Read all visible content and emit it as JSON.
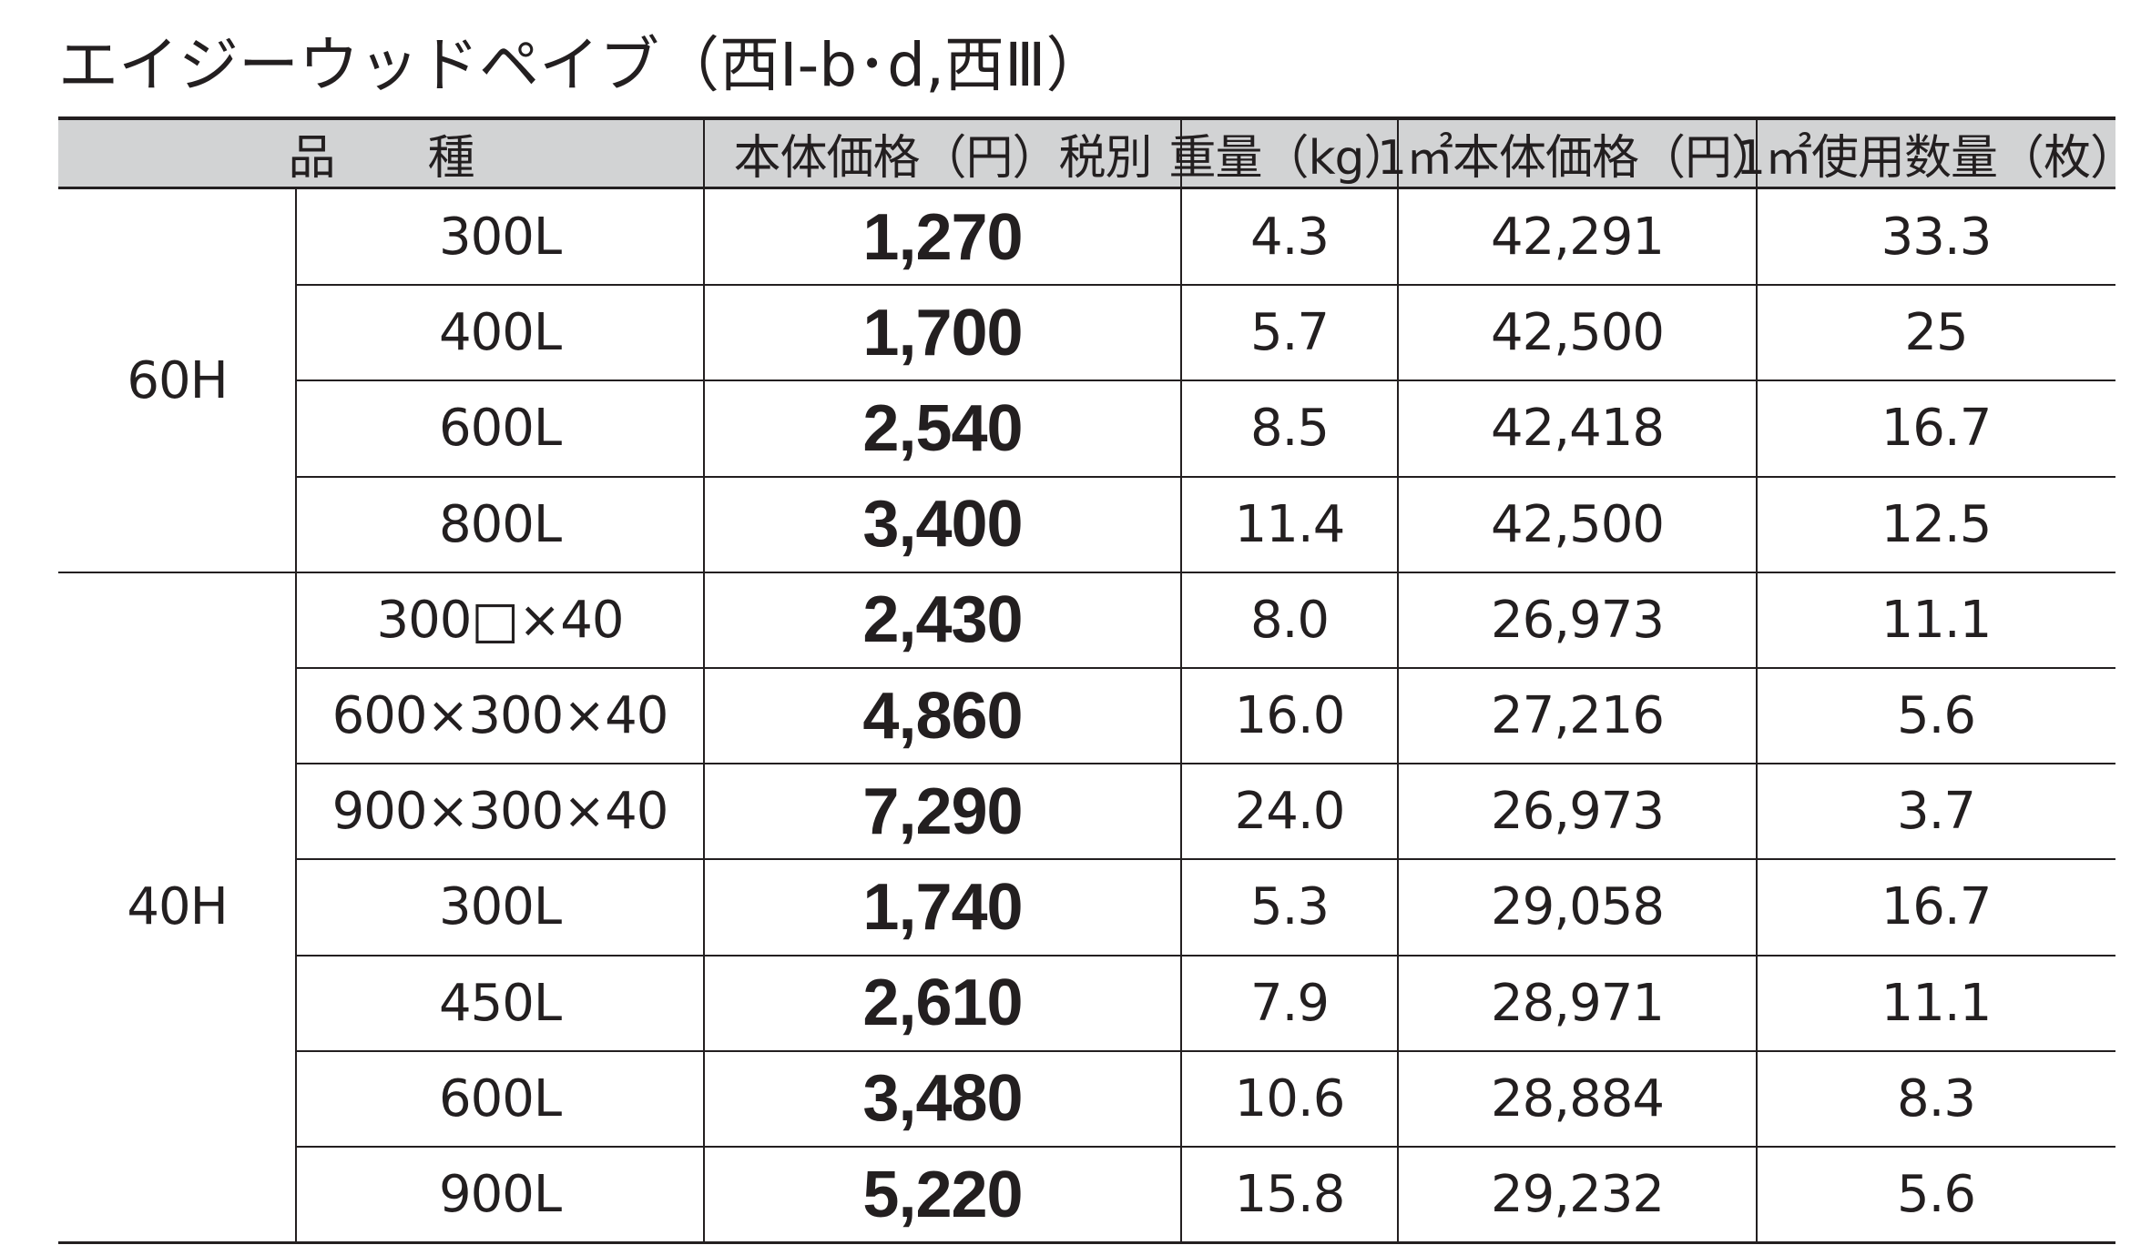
{
  "header": {
    "title": "エイジーウッドペイブ（西Ⅰ-b･d,西Ⅲ）"
  },
  "table": {
    "columns": [
      "品　　種",
      "本体価格（円）税別",
      "重量（kg）",
      "1㎡本体価格（円）",
      "1㎡使用数量（枚）"
    ],
    "groups": [
      {
        "label": "60H",
        "rows": [
          [
            "300L",
            "1,270",
            "4.3",
            "42,291",
            "33.3"
          ],
          [
            "400L",
            "1,700",
            "5.7",
            "42,500",
            "25"
          ],
          [
            "600L",
            "2,540",
            "8.5",
            "42,418",
            "16.7"
          ],
          [
            "800L",
            "3,400",
            "11.4",
            "42,500",
            "12.5"
          ]
        ]
      },
      {
        "label": "40H",
        "rows": [
          [
            "300□×40",
            "2,430",
            "8.0",
            "26,973",
            "11.1"
          ],
          [
            "600×300×40",
            "4,860",
            "16.0",
            "27,216",
            "5.6"
          ],
          [
            "900×300×40",
            "7,290",
            "24.0",
            "26,973",
            "3.7"
          ],
          [
            "300L",
            "1,740",
            "5.3",
            "29,058",
            "16.7"
          ],
          [
            "450L",
            "2,610",
            "7.9",
            "28,971",
            "11.1"
          ],
          [
            "600L",
            "3,480",
            "10.6",
            "28,884",
            "8.3"
          ],
          [
            "900L",
            "5,220",
            "15.8",
            "29,232",
            "5.6"
          ]
        ]
      }
    ]
  }
}
